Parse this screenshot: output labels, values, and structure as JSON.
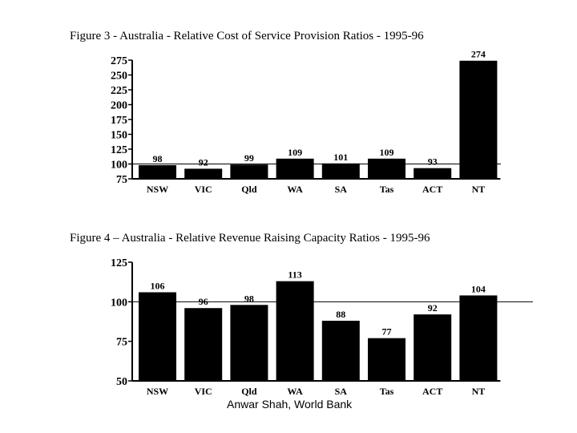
{
  "figures": {
    "fig3": {
      "title": "Figure 3 -   Australia - Relative Cost of Service Provision Ratios - 1995-96"
    },
    "fig4": {
      "title": "Figure 4 – Australia - Relative Revenue Raising Capacity Ratios - 1995-96"
    }
  },
  "footer": {
    "credit": "Anwar Shah, World Bank"
  },
  "colors": {
    "bar": "#000000",
    "background": "#ffffff",
    "reference_line": "#000000"
  },
  "chart_data": [
    {
      "type": "bar",
      "title": "Figure 3 -   Australia - Relative Cost of Service Provision Ratios - 1995-96",
      "categories": [
        "NSW",
        "VIC",
        "Qld",
        "WA",
        "SA",
        "Tas",
        "ACT",
        "NT"
      ],
      "values": [
        98,
        92,
        99,
        109,
        101,
        109,
        93,
        274
      ],
      "data_labels": [
        "98",
        "92",
        "99",
        "109",
        "101",
        "109",
        "93",
        "274"
      ],
      "xlabel": "",
      "ylabel": "",
      "ylim": [
        75,
        275
      ],
      "yticks": [
        75,
        100,
        125,
        150,
        175,
        200,
        225,
        250,
        275
      ],
      "reference_line": 100,
      "grid": false,
      "legend": "none"
    },
    {
      "type": "bar",
      "title": "Figure 4 – Australia - Relative Revenue Raising Capacity Ratios - 1995-96",
      "categories": [
        "NSW",
        "VIC",
        "Qld",
        "WA",
        "SA",
        "Tas",
        "ACT",
        "NT"
      ],
      "values": [
        106,
        96,
        98,
        113,
        88,
        77,
        92,
        104
      ],
      "data_labels": [
        "106",
        "96",
        "98",
        "113",
        "88",
        "77",
        "92",
        "104"
      ],
      "xlabel": "",
      "ylabel": "",
      "ylim": [
        50,
        125
      ],
      "yticks": [
        50,
        75,
        100,
        125
      ],
      "reference_line": 100,
      "grid": false,
      "legend": "none"
    }
  ]
}
